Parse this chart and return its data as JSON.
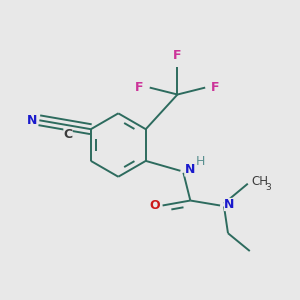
{
  "background_color": "#e8e8e8",
  "bond_color": "#2d6b5e",
  "bond_color_dark": "#3c3c3c",
  "atom_colors": {
    "N": "#1a1acc",
    "O": "#cc1a1a",
    "F": "#cc3399",
    "C": "#3c3c3c",
    "H": "#5a9090"
  },
  "figsize": [
    3.0,
    3.0
  ],
  "dpi": 100
}
